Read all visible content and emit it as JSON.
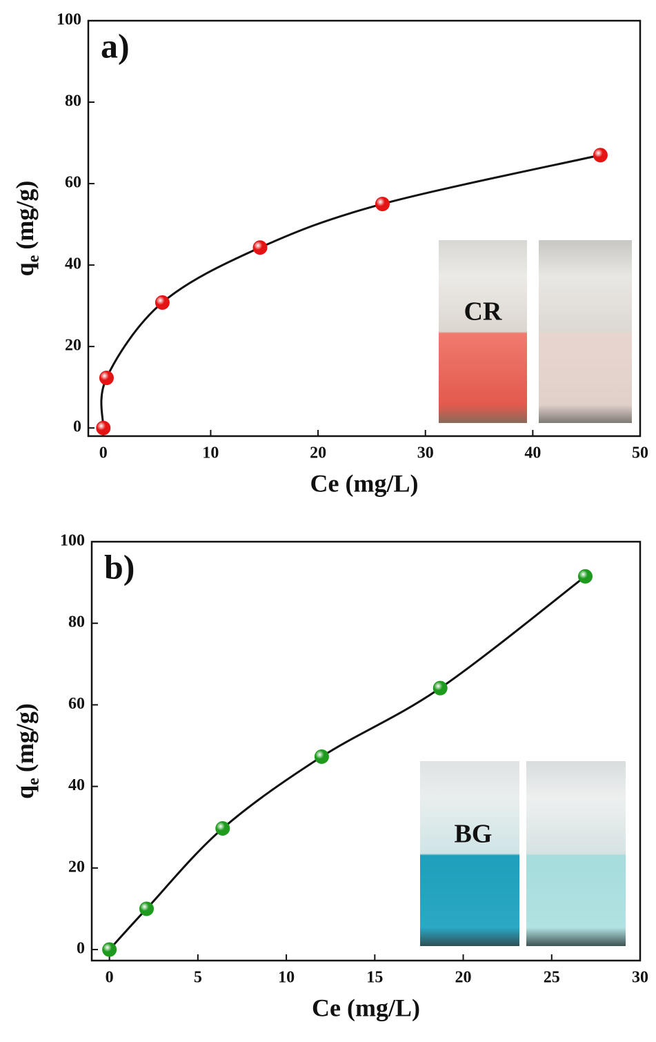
{
  "chart_data": [
    {
      "type": "scatter",
      "panel_label": "a)",
      "x_label": "Ce (mg/L)",
      "y_label": [
        "q",
        "e",
        "(mg/g)"
      ],
      "x": [
        0,
        0.3,
        5.5,
        14.6,
        26,
        46.3
      ],
      "series": [
        {
          "color": "#e41414",
          "values": [
            0,
            12.3,
            30.8,
            44.3,
            55,
            67
          ]
        }
      ],
      "xlim": [
        -1.4,
        50
      ],
      "ylim": [
        -2,
        100
      ],
      "xticks": [
        0,
        10,
        20,
        30,
        40,
        50
      ],
      "yticks": [
        0,
        20,
        40,
        60,
        80,
        100
      ],
      "inset_label": "CR"
    },
    {
      "type": "scatter",
      "panel_label": "b)",
      "x_label": "Ce (mg/L)",
      "y_label": [
        "q",
        "e",
        "(mg/g)"
      ],
      "x": [
        0,
        2.1,
        6.4,
        12,
        18.7,
        26.9
      ],
      "series": [
        {
          "color": "#1e9a1e",
          "values": [
            0,
            10,
            29.7,
            47.3,
            64.1,
            91.5
          ]
        }
      ],
      "xlim": [
        -1,
        30
      ],
      "ylim": [
        -2.7,
        100
      ],
      "xticks": [
        0,
        5,
        10,
        15,
        20,
        25,
        30
      ],
      "yticks": [
        0,
        20,
        40,
        60,
        80,
        100
      ],
      "inset_label": "BG"
    }
  ]
}
